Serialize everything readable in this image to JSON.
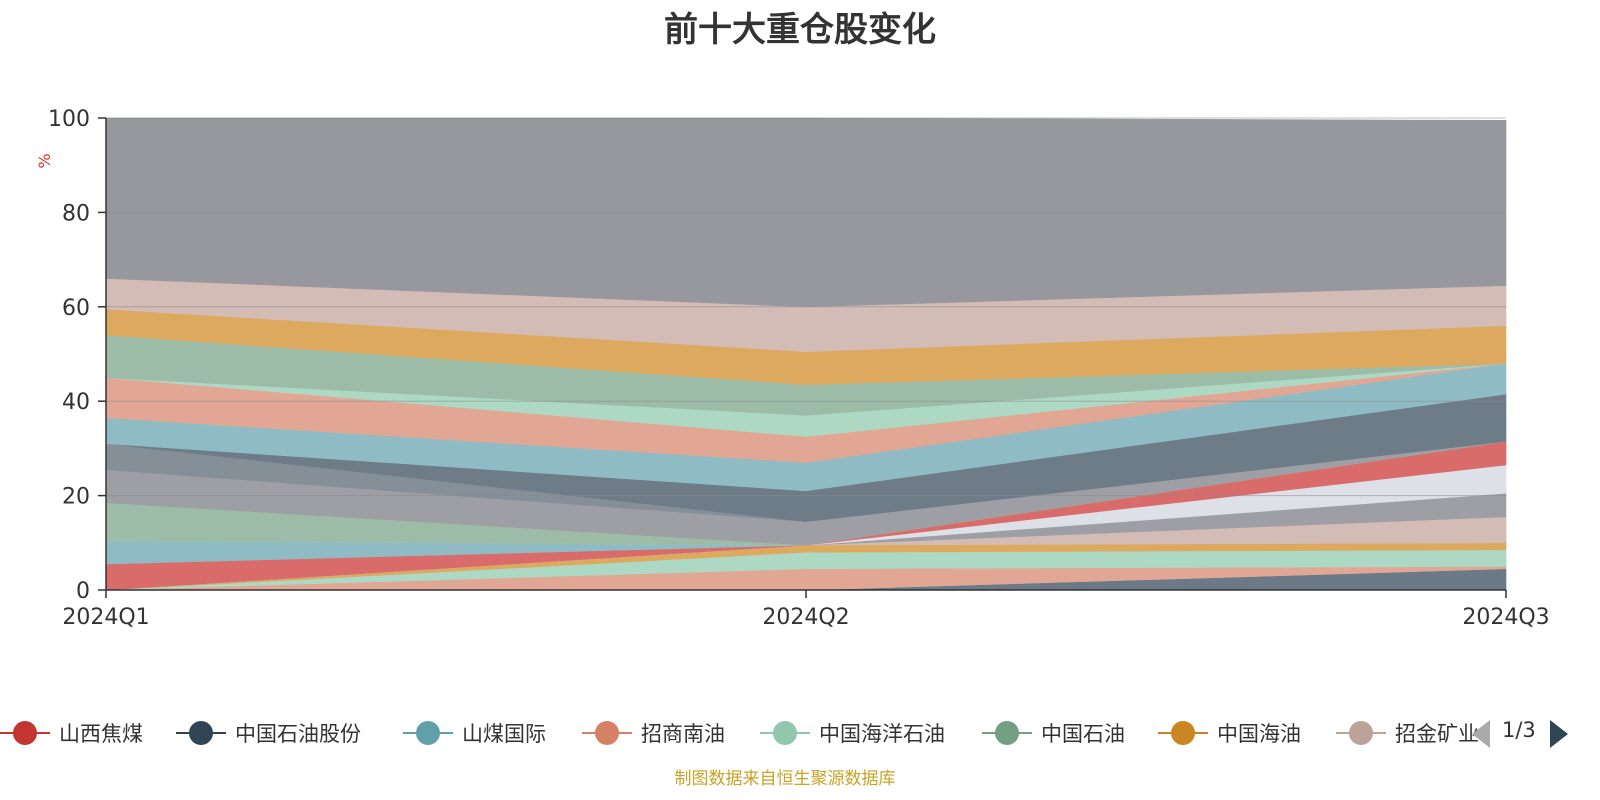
{
  "title": "前十大重仓股变化",
  "source_note": "制图数据来自恒生聚源数据库",
  "colors": {
    "title": "#333333",
    "axis": "#333333",
    "grid": "#8a8a8a",
    "unit": "#e03030",
    "source": "#c9a227"
  },
  "legend": {
    "page": "1/3",
    "prev_icon": "triangle-left-icon",
    "next_icon": "triangle-right-icon"
  },
  "chart_data": {
    "type": "area",
    "stacked": true,
    "categories": [
      "2024Q1",
      "2024Q2",
      "2024Q3"
    ],
    "ylabel": "%",
    "ylim": [
      0,
      100
    ],
    "yticks": [
      0,
      20,
      40,
      60,
      80,
      100
    ],
    "grid": true,
    "legend_position": "bottom",
    "series": [
      {
        "name": "中国石油股份",
        "color": "#6b7a86",
        "legend_color": "#2f4554",
        "in_legend": true,
        "values": [
          0,
          0,
          4.5
        ]
      },
      {
        "name": "山煤国际",
        "color": "#8fbcc4",
        "legend_color": "#61a0a8",
        "in_legend": true,
        "values": [
          0,
          0,
          0
        ]
      },
      {
        "name": "招商南油",
        "color": "#e2a794",
        "legend_color": "#d48265",
        "in_legend": true,
        "values": [
          0,
          4.5,
          0.5
        ]
      },
      {
        "name": "中国海洋石油",
        "color": "#acd8c4",
        "legend_color": "#91c7ae",
        "in_legend": true,
        "values": [
          0,
          3.5,
          3.5
        ]
      },
      {
        "name": "中国海油",
        "color": "#dca95e",
        "legend_color": "#ca8622",
        "in_legend": true,
        "values": [
          0,
          1.5,
          1.5
        ]
      },
      {
        "name": "招金矿业",
        "color": "#d3bcb5",
        "legend_color": "#bda29a",
        "in_legend": true,
        "values": [
          0,
          0,
          5.5
        ]
      },
      {
        "name": "",
        "color": "#9d9fa4",
        "legend_color": "",
        "in_legend": false,
        "values": [
          0,
          0,
          5
        ]
      },
      {
        "name": "",
        "color": "#dde0e6",
        "legend_color": "",
        "in_legend": false,
        "values": [
          0,
          0,
          6
        ]
      },
      {
        "name": "山西焦煤",
        "color": "#d96b6b",
        "legend_color": "#c23531",
        "in_legend": true,
        "values": [
          5.5,
          0,
          5
        ]
      },
      {
        "name": "",
        "color": "#8fbcc4",
        "legend_color": "",
        "in_legend": false,
        "values": [
          5,
          0,
          0
        ]
      },
      {
        "name": "",
        "color": "#e2a794",
        "legend_color": "",
        "in_legend": false,
        "values": [
          0,
          0,
          0
        ]
      },
      {
        "name": "",
        "color": "#acd8c4",
        "legend_color": "",
        "in_legend": false,
        "values": [
          0,
          0,
          0
        ]
      },
      {
        "name": "中国石油",
        "color": "#9cbca8",
        "legend_color": "#749f83",
        "in_legend": true,
        "values": [
          8,
          0,
          0
        ]
      },
      {
        "name": "",
        "color": "#dca95e",
        "legend_color": "",
        "in_legend": false,
        "values": [
          0,
          0,
          0
        ]
      },
      {
        "name": "",
        "color": "#9d9fa4",
        "legend_color": "",
        "in_legend": false,
        "values": [
          7,
          5,
          0
        ]
      },
      {
        "name": "",
        "color": "#858f98",
        "legend_color": "",
        "in_legend": false,
        "values": [
          5.5,
          0,
          0
        ]
      },
      {
        "name": "",
        "color": "#6e7c88",
        "legend_color": "",
        "in_legend": false,
        "values": [
          0,
          6.5,
          10
        ]
      },
      {
        "name": "",
        "color": "#8fbcc4",
        "legend_color": "",
        "in_legend": false,
        "values": [
          5.5,
          6,
          6.5
        ]
      },
      {
        "name": "",
        "color": "#e2a794",
        "legend_color": "",
        "in_legend": false,
        "values": [
          8.5,
          5.5,
          0
        ]
      },
      {
        "name": "",
        "color": "#acd8c4",
        "legend_color": "",
        "in_legend": false,
        "values": [
          0,
          4.5,
          0
        ]
      },
      {
        "name": "",
        "color": "#9cbca8",
        "legend_color": "",
        "in_legend": false,
        "values": [
          9,
          6.5,
          0
        ]
      },
      {
        "name": "",
        "color": "#dca95e",
        "legend_color": "",
        "in_legend": false,
        "values": [
          5.5,
          7,
          8
        ]
      },
      {
        "name": "",
        "color": "#d3bcb5",
        "legend_color": "",
        "in_legend": false,
        "values": [
          6.5,
          9.5,
          8.5
        ]
      },
      {
        "name": "",
        "color": "#97989d",
        "legend_color": "",
        "in_legend": false,
        "values": [
          34,
          40,
          35
        ]
      }
    ]
  }
}
